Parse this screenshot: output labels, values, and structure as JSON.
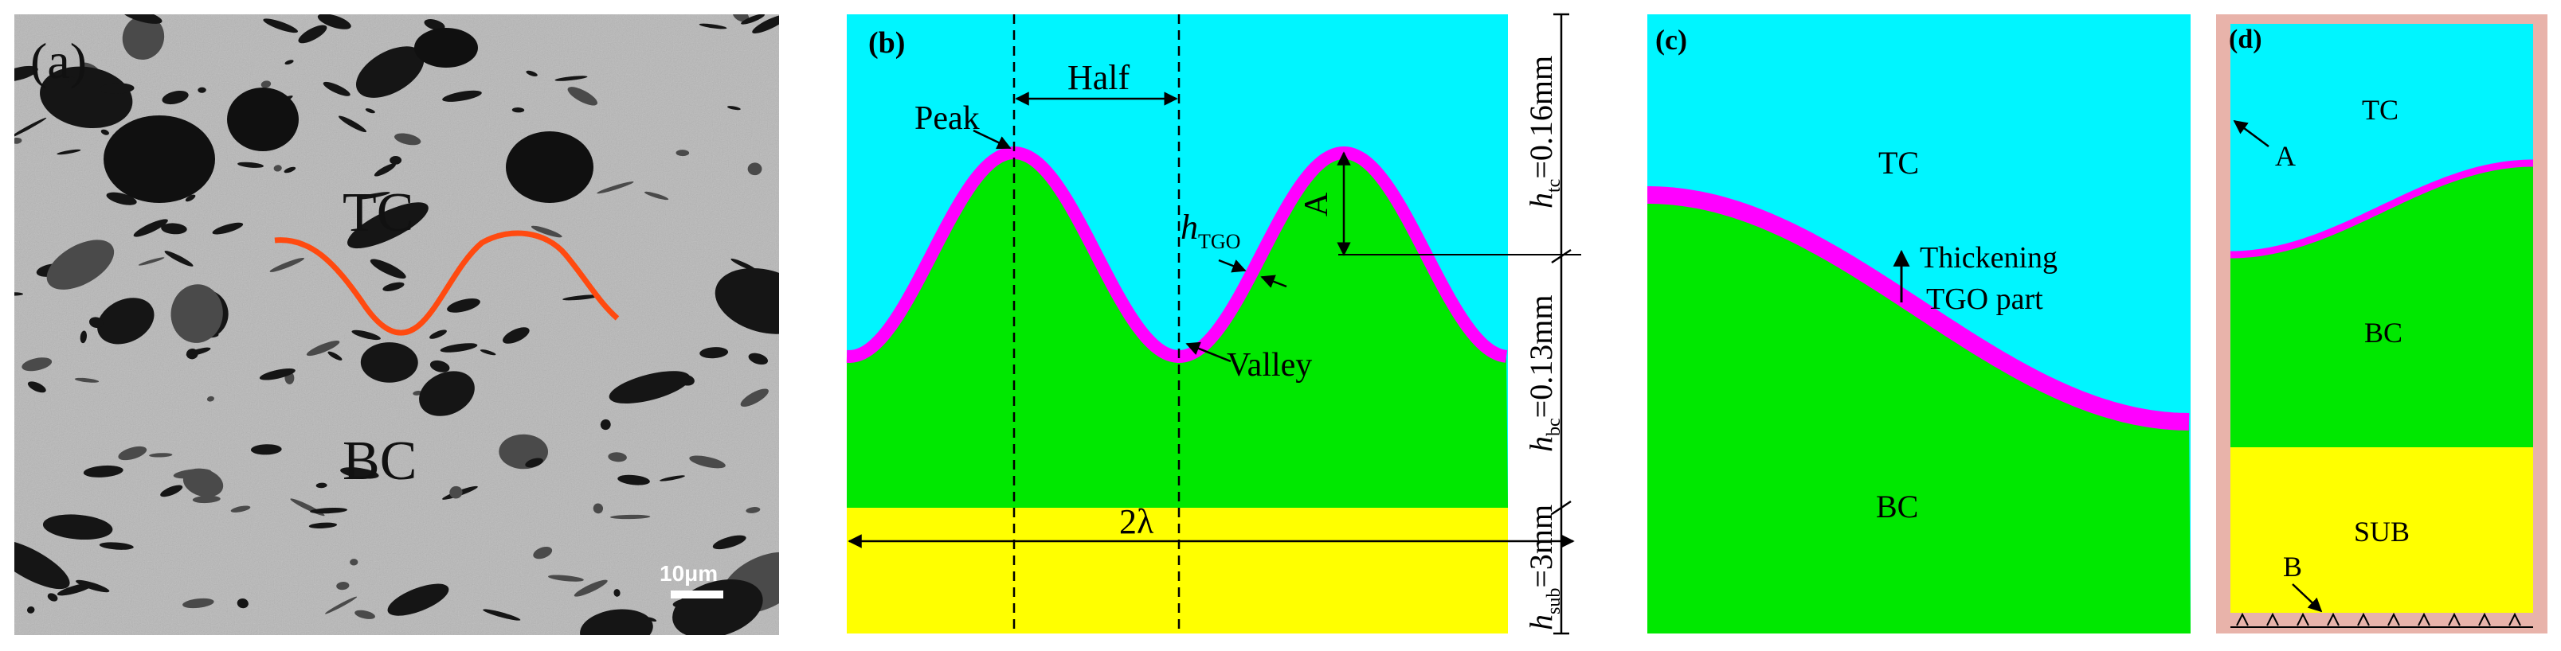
{
  "colors": {
    "tc": "#00f5ff",
    "bc": "#00e800",
    "tgo": "#ff00ff",
    "sub": "#ffff00",
    "boundary": "#e8b3aa",
    "profile": "#ff4a10",
    "micrograph": "#b8b8b8"
  },
  "panel_a": {
    "label": "(a)",
    "tc_label": "TC",
    "bc_label": "BC",
    "scale_bar": "10μm"
  },
  "panel_b": {
    "label": "(b)",
    "half": "Half",
    "peak": "Peak",
    "valley": "Valley",
    "amplitude": "A",
    "wavelength": "2λ",
    "h_tgo": {
      "base": "h",
      "sub": "TGO"
    },
    "h_tc": {
      "base": "h",
      "sub": "tc",
      "value": "=0.16mm"
    },
    "h_bc": {
      "base": "h",
      "sub": "bc",
      "value": "=0.13mm"
    },
    "h_sub": {
      "base": "h",
      "sub": "sub",
      "value": "=3mm"
    }
  },
  "panel_c": {
    "label": "(c)",
    "tc_label": "TC",
    "bc_label": "BC",
    "thickening_line1": "Thickening",
    "thickening_line2": "TGO part"
  },
  "panel_d": {
    "label": "(d)",
    "tc_label": "TC",
    "bc_label": "BC",
    "sub_label": "SUB",
    "point_a": "A",
    "point_b": "B"
  }
}
